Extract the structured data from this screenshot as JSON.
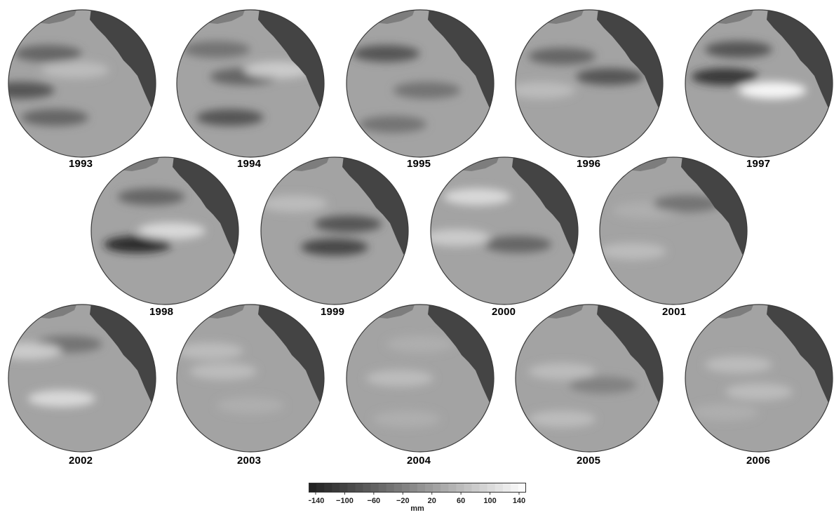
{
  "colors": {
    "ocean": "#a3a3a3",
    "land": "#444444",
    "rim": "#3a3a3a"
  },
  "panels": [
    {
      "year": "1993",
      "anomalies": [
        {
          "lon": 0.25,
          "lat": 0.28,
          "v": -60
        },
        {
          "lon": 0.05,
          "lat": 0.55,
          "v": -80
        },
        {
          "lon": 0.45,
          "lat": 0.4,
          "v": 60
        },
        {
          "lon": 0.3,
          "lat": 0.75,
          "v": -60
        }
      ]
    },
    {
      "year": "1994",
      "anomalies": [
        {
          "lon": 0.45,
          "lat": 0.45,
          "v": -60
        },
        {
          "lon": 0.7,
          "lat": 0.4,
          "v": 80
        },
        {
          "lon": 0.35,
          "lat": 0.75,
          "v": -80
        },
        {
          "lon": 0.25,
          "lat": 0.25,
          "v": -40
        }
      ]
    },
    {
      "year": "1995",
      "anomalies": [
        {
          "lon": 0.25,
          "lat": 0.28,
          "v": -80
        },
        {
          "lon": 0.55,
          "lat": 0.55,
          "v": -40
        },
        {
          "lon": 0.3,
          "lat": 0.8,
          "v": -40
        }
      ]
    },
    {
      "year": "1996",
      "anomalies": [
        {
          "lon": 0.3,
          "lat": 0.3,
          "v": -60
        },
        {
          "lon": 0.65,
          "lat": 0.45,
          "v": -80
        },
        {
          "lon": 0.15,
          "lat": 0.55,
          "v": 60
        }
      ]
    },
    {
      "year": "1997",
      "anomalies": [
        {
          "lon": 0.6,
          "lat": 0.55,
          "v": 140
        },
        {
          "lon": 0.25,
          "lat": 0.45,
          "v": -120
        },
        {
          "lon": 0.35,
          "lat": 0.25,
          "v": -80
        }
      ]
    },
    {
      "year": "1998",
      "anomalies": [
        {
          "lon": 0.3,
          "lat": 0.6,
          "v": -140
        },
        {
          "lon": 0.55,
          "lat": 0.5,
          "v": 100
        },
        {
          "lon": 0.4,
          "lat": 0.25,
          "v": -60
        }
      ]
    },
    {
      "year": "1999",
      "anomalies": [
        {
          "lon": 0.5,
          "lat": 0.62,
          "v": -100
        },
        {
          "lon": 0.6,
          "lat": 0.45,
          "v": -80
        },
        {
          "lon": 0.2,
          "lat": 0.3,
          "v": 60
        }
      ]
    },
    {
      "year": "2000",
      "anomalies": [
        {
          "lon": 0.6,
          "lat": 0.6,
          "v": -60
        },
        {
          "lon": 0.3,
          "lat": 0.25,
          "v": 100
        },
        {
          "lon": 0.15,
          "lat": 0.55,
          "v": 80
        }
      ]
    },
    {
      "year": "2001",
      "anomalies": [
        {
          "lon": 0.3,
          "lat": 0.35,
          "v": 40
        },
        {
          "lon": 0.6,
          "lat": 0.3,
          "v": -40
        },
        {
          "lon": 0.2,
          "lat": 0.65,
          "v": 60
        }
      ]
    },
    {
      "year": "2002",
      "anomalies": [
        {
          "lon": 0.35,
          "lat": 0.65,
          "v": 100
        },
        {
          "lon": 0.4,
          "lat": 0.25,
          "v": -40
        },
        {
          "lon": 0.1,
          "lat": 0.3,
          "v": 80
        }
      ]
    },
    {
      "year": "2003",
      "anomalies": [
        {
          "lon": 0.3,
          "lat": 0.45,
          "v": 60
        },
        {
          "lon": 0.5,
          "lat": 0.7,
          "v": 40
        },
        {
          "lon": 0.2,
          "lat": 0.3,
          "v": 60
        }
      ]
    },
    {
      "year": "2004",
      "anomalies": [
        {
          "lon": 0.35,
          "lat": 0.5,
          "v": 60
        },
        {
          "lon": 0.5,
          "lat": 0.25,
          "v": 40
        },
        {
          "lon": 0.4,
          "lat": 0.8,
          "v": 40
        }
      ]
    },
    {
      "year": "2005",
      "anomalies": [
        {
          "lon": 0.3,
          "lat": 0.45,
          "v": 60
        },
        {
          "lon": 0.6,
          "lat": 0.55,
          "v": -20
        },
        {
          "lon": 0.3,
          "lat": 0.8,
          "v": 60
        }
      ]
    },
    {
      "year": "2006",
      "anomalies": [
        {
          "lon": 0.35,
          "lat": 0.4,
          "v": 60
        },
        {
          "lon": 0.5,
          "lat": 0.6,
          "v": 60
        },
        {
          "lon": 0.25,
          "lat": 0.75,
          "v": 40
        }
      ]
    }
  ],
  "legend": {
    "ticks": [
      "−140",
      "−100",
      "−60",
      "−20",
      "20",
      "60",
      "100",
      "140"
    ],
    "unit": "mm",
    "range": [
      -140,
      140
    ]
  }
}
